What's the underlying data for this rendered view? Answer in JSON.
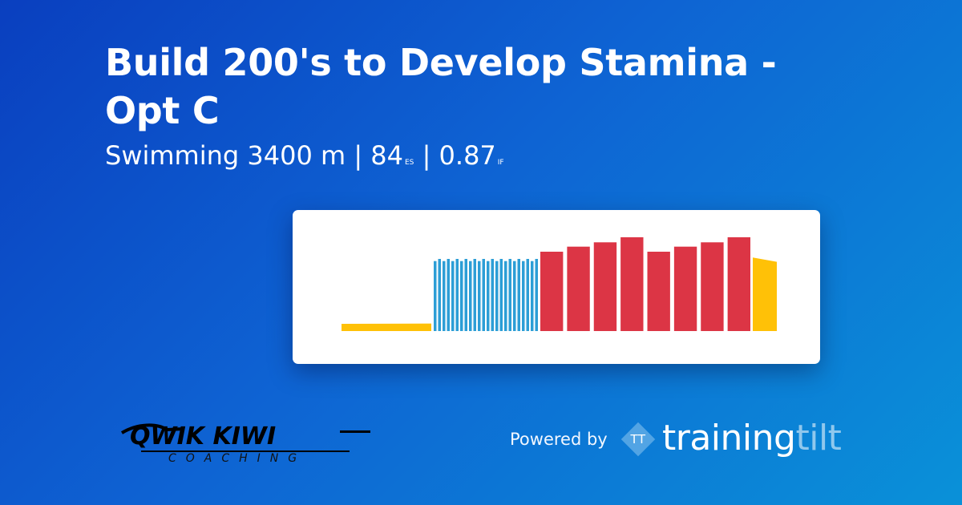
{
  "workout": {
    "title": "Build 200's to Develop Stamina - Opt C",
    "sport": "Swimming",
    "distance": "3400 m",
    "es_value": "84",
    "es_label": "ES",
    "if_value": "0.87",
    "if_label": "IF",
    "separator": "|"
  },
  "footer": {
    "powered_by": "Powered by",
    "tt_badge": "TT",
    "brand_part1": "training",
    "brand_part2": "tilt",
    "coach_logo_line1": "QWIK KIWI",
    "coach_logo_line2": "COACHING"
  },
  "colors": {
    "yellow": "#ffc107",
    "blue": "#2c9ed6",
    "red": "#dc3545"
  },
  "chart_data": {
    "type": "bar",
    "title": "",
    "xlabel": "",
    "ylabel": "",
    "ylim": [
      0,
      1
    ],
    "segments": [
      {
        "zone": "yellow",
        "start": [
          0.1
        ],
        "end": [
          0.104
        ]
      },
      {
        "zone": "blue",
        "values": [
          0.97,
          1.0,
          0.97,
          1.0,
          0.97,
          1.0,
          0.97,
          1.0,
          0.97,
          1.0,
          0.97,
          1.0,
          0.97,
          1.0,
          0.97,
          1.0,
          0.97,
          1.0,
          0.97,
          1.0,
          0.97,
          1.0,
          0.97,
          1.0
        ]
      },
      {
        "zone": "red",
        "values": [
          1.1,
          1.17,
          1.23,
          1.3,
          1.1,
          1.17,
          1.23,
          1.3
        ]
      },
      {
        "zone": "yellow",
        "start": [
          1.02
        ],
        "end": [
          0.96
        ]
      }
    ]
  }
}
